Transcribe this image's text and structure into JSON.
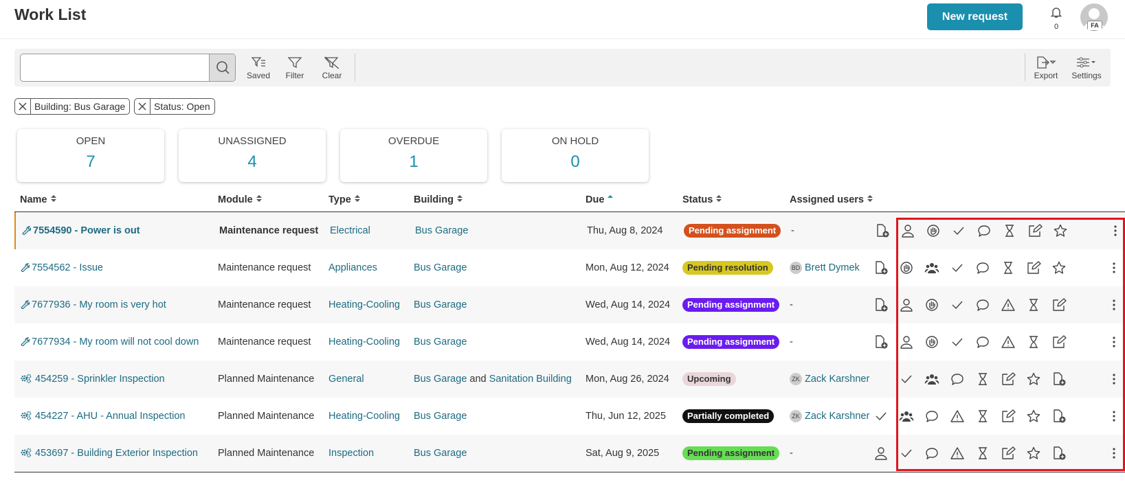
{
  "header": {
    "title": "Work List",
    "new_request": "New request",
    "notifications": 0,
    "avatar": "FA"
  },
  "toolbar": {
    "saved": "Saved",
    "filter": "Filter",
    "clear": "Clear",
    "export": "Export",
    "settings": "Settings"
  },
  "filters": [
    "Building: Bus Garage",
    "Status: Open"
  ],
  "summary": [
    {
      "label": "OPEN",
      "count": 7
    },
    {
      "label": "UNASSIGNED",
      "count": 4
    },
    {
      "label": "OVERDUE",
      "count": 1
    },
    {
      "label": "ON HOLD",
      "count": 0
    }
  ],
  "table": {
    "columns": [
      "Name",
      "Module",
      "Type",
      "Building",
      "Due",
      "Status",
      "Assigned users"
    ],
    "rows": [
      {
        "name": "7554590 - Power is out",
        "selected": true,
        "module": "Maintenance request",
        "type": "Electrical",
        "building": [
          {
            "text": "Bus Garage",
            "link": true
          }
        ],
        "due": "Thu, Aug 8, 2024",
        "status": "Pending assignment",
        "status_color": "#d4501c",
        "assigned": "-"
      },
      {
        "name": "7554562 - Issue",
        "module": "Maintenance request",
        "type": "Appliances",
        "building": [
          {
            "text": "Bus Garage",
            "link": true
          }
        ],
        "due": "Mon, Aug 12, 2024",
        "status": "Pending resolution",
        "status_color": "#d8c81e",
        "assigned": {
          "initials": "BD",
          "name": "Brett Dymek"
        }
      },
      {
        "name": "7677936 - My room is very hot",
        "module": "Maintenance request",
        "type": "Heating-Cooling",
        "building": [
          {
            "text": "Bus Garage",
            "link": true
          }
        ],
        "due": "Wed, Aug 14, 2024",
        "status": "Pending assignment",
        "status_color": "#6a1cf0",
        "assigned": "-"
      },
      {
        "name": "7677934 - My room will not cool down",
        "module": "Maintenance request",
        "type": "Heating-Cooling",
        "building": [
          {
            "text": "Bus Garage",
            "link": true
          }
        ],
        "due": "Wed, Aug 14, 2024",
        "status": "Pending assignment",
        "status_color": "#6a1cf0",
        "assigned": "-"
      },
      {
        "name": "454259 - Sprinkler Inspection",
        "module": "Planned Maintenance",
        "type": "General",
        "building": [
          {
            "text": "Bus Garage",
            "link": true
          },
          {
            "text": "and",
            "link": false
          },
          {
            "text": "Sanitation Building",
            "link": true
          }
        ],
        "due": "Mon, Aug 26, 2024",
        "status": "Upcoming",
        "status_color": "#e9d6da",
        "assigned": {
          "initials": "ZK",
          "name": "Zack Karshner"
        }
      },
      {
        "name": "454227 - AHU - Annual Inspection",
        "module": "Planned Maintenance",
        "type": "Heating-Cooling",
        "building": [
          {
            "text": "Bus Garage",
            "link": true
          }
        ],
        "due": "Thu, Jun 12, 2025",
        "status": "Partially completed",
        "status_color": "#111111",
        "assigned": {
          "initials": "ZK",
          "name": "Zack Karshner"
        }
      },
      {
        "name": "453697 - Building Exterior Inspection",
        "module": "Planned Maintenance",
        "type": "Inspection",
        "building": [
          {
            "text": "Bus Garage",
            "link": true
          }
        ],
        "due": "Sat, Aug 9, 2025",
        "status": "Pending assignment",
        "status_color": "#66dd55",
        "assigned": "-"
      }
    ]
  }
}
